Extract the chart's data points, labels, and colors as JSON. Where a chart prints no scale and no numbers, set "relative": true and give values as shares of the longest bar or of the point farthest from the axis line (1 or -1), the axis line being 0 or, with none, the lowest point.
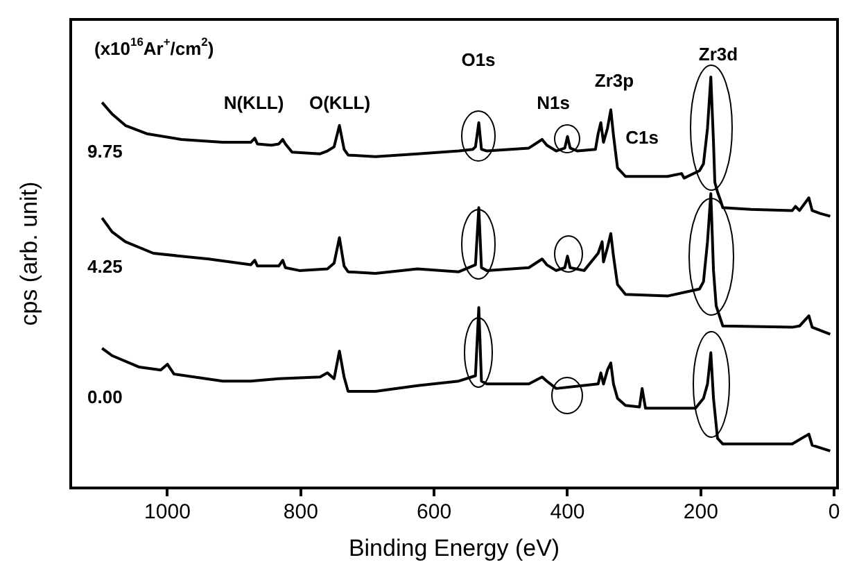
{
  "chart_data": {
    "type": "line",
    "relative": true,
    "xlabel": "Binding Energy (eV)",
    "ylabel": "cps (arb. unit)",
    "legend_title": "(x10$^{16}$Ar$^{+}$/cm$^{2}$)",
    "legend": false,
    "xlim": [
      1145,
      -5
    ],
    "xticks": [
      1000,
      800,
      600,
      400,
      200,
      0
    ],
    "series": [
      {
        "name": "9.75",
        "color": "#000000",
        "x": [
          1098,
          1083,
          1063,
          1031,
          979,
          917,
          875,
          869,
          865,
          844,
          833,
          827,
          823,
          813,
          771,
          760,
          750,
          742,
          735,
          729,
          688,
          625,
          563,
          542,
          538,
          533,
          529,
          521,
          458,
          438,
          431,
          417,
          404,
          400,
          396,
          385,
          358,
          354,
          350,
          346,
          340,
          335,
          331,
          325,
          313,
          250,
          229,
          225,
          202,
          196,
          190,
          185,
          181,
          179,
          175,
          171,
          167,
          125,
          63,
          58,
          52,
          38,
          33,
          21,
          6
        ],
        "values": [
          0.938,
          0.91,
          0.882,
          0.862,
          0.848,
          0.841,
          0.841,
          0.851,
          0.837,
          0.834,
          0.837,
          0.848,
          0.837,
          0.817,
          0.813,
          0.82,
          0.83,
          0.882,
          0.824,
          0.81,
          0.806,
          0.813,
          0.82,
          0.824,
          0.83,
          0.889,
          0.824,
          0.82,
          0.827,
          0.848,
          0.834,
          0.82,
          0.827,
          0.855,
          0.827,
          0.82,
          0.824,
          0.862,
          0.889,
          0.841,
          0.875,
          0.92,
          0.858,
          0.779,
          0.758,
          0.758,
          0.765,
          0.754,
          0.772,
          0.789,
          0.875,
          1.0,
          0.841,
          0.744,
          0.72,
          0.702,
          0.682,
          0.678,
          0.675,
          0.685,
          0.675,
          0.706,
          0.675,
          0.668,
          0.661
        ]
      },
      {
        "name": "4.25",
        "color": "#000000",
        "x": [
          1098,
          1083,
          1063,
          1021,
          938,
          875,
          869,
          865,
          833,
          827,
          823,
          802,
          760,
          750,
          742,
          735,
          729,
          688,
          625,
          563,
          538,
          533,
          529,
          521,
          458,
          438,
          431,
          417,
          404,
          400,
          396,
          375,
          354,
          348,
          346,
          340,
          335,
          331,
          325,
          313,
          250,
          202,
          196,
          190,
          185,
          181,
          177,
          167,
          63,
          52,
          38,
          33,
          6
        ],
        "values": [
          0.657,
          0.623,
          0.599,
          0.571,
          0.557,
          0.543,
          0.554,
          0.54,
          0.54,
          0.554,
          0.536,
          0.529,
          0.533,
          0.547,
          0.609,
          0.54,
          0.526,
          0.522,
          0.533,
          0.526,
          0.543,
          0.682,
          0.536,
          0.529,
          0.536,
          0.557,
          0.543,
          0.529,
          0.536,
          0.564,
          0.536,
          0.529,
          0.571,
          0.599,
          0.55,
          0.585,
          0.619,
          0.564,
          0.495,
          0.471,
          0.467,
          0.484,
          0.502,
          0.599,
          0.716,
          0.529,
          0.443,
          0.394,
          0.391,
          0.394,
          0.419,
          0.391,
          0.374
        ]
      },
      {
        "name": "0.00",
        "color": "#000000",
        "x": [
          1098,
          1083,
          1042,
          1010,
          1000,
          990,
          917,
          875,
          833,
          771,
          760,
          750,
          742,
          735,
          729,
          688,
          625,
          563,
          538,
          533,
          529,
          521,
          458,
          438,
          431,
          417,
          354,
          350,
          346,
          340,
          335,
          331,
          325,
          313,
          292,
          288,
          283,
          208,
          196,
          190,
          185,
          181,
          175,
          167,
          63,
          38,
          33,
          6
        ],
        "values": [
          0.34,
          0.322,
          0.294,
          0.287,
          0.301,
          0.277,
          0.26,
          0.26,
          0.266,
          0.27,
          0.28,
          0.266,
          0.333,
          0.27,
          0.235,
          0.235,
          0.249,
          0.26,
          0.273,
          0.439,
          0.26,
          0.253,
          0.253,
          0.27,
          0.26,
          0.242,
          0.253,
          0.28,
          0.253,
          0.287,
          0.304,
          0.253,
          0.218,
          0.201,
          0.197,
          0.242,
          0.194,
          0.194,
          0.218,
          0.253,
          0.329,
          0.218,
          0.121,
          0.107,
          0.107,
          0.131,
          0.104,
          0.09
        ]
      }
    ],
    "annotations": [
      "N(KLL)",
      "O(KLL)",
      "O1s",
      "N1s",
      "Zr3p",
      "C1s",
      "Zr3d"
    ]
  }
}
